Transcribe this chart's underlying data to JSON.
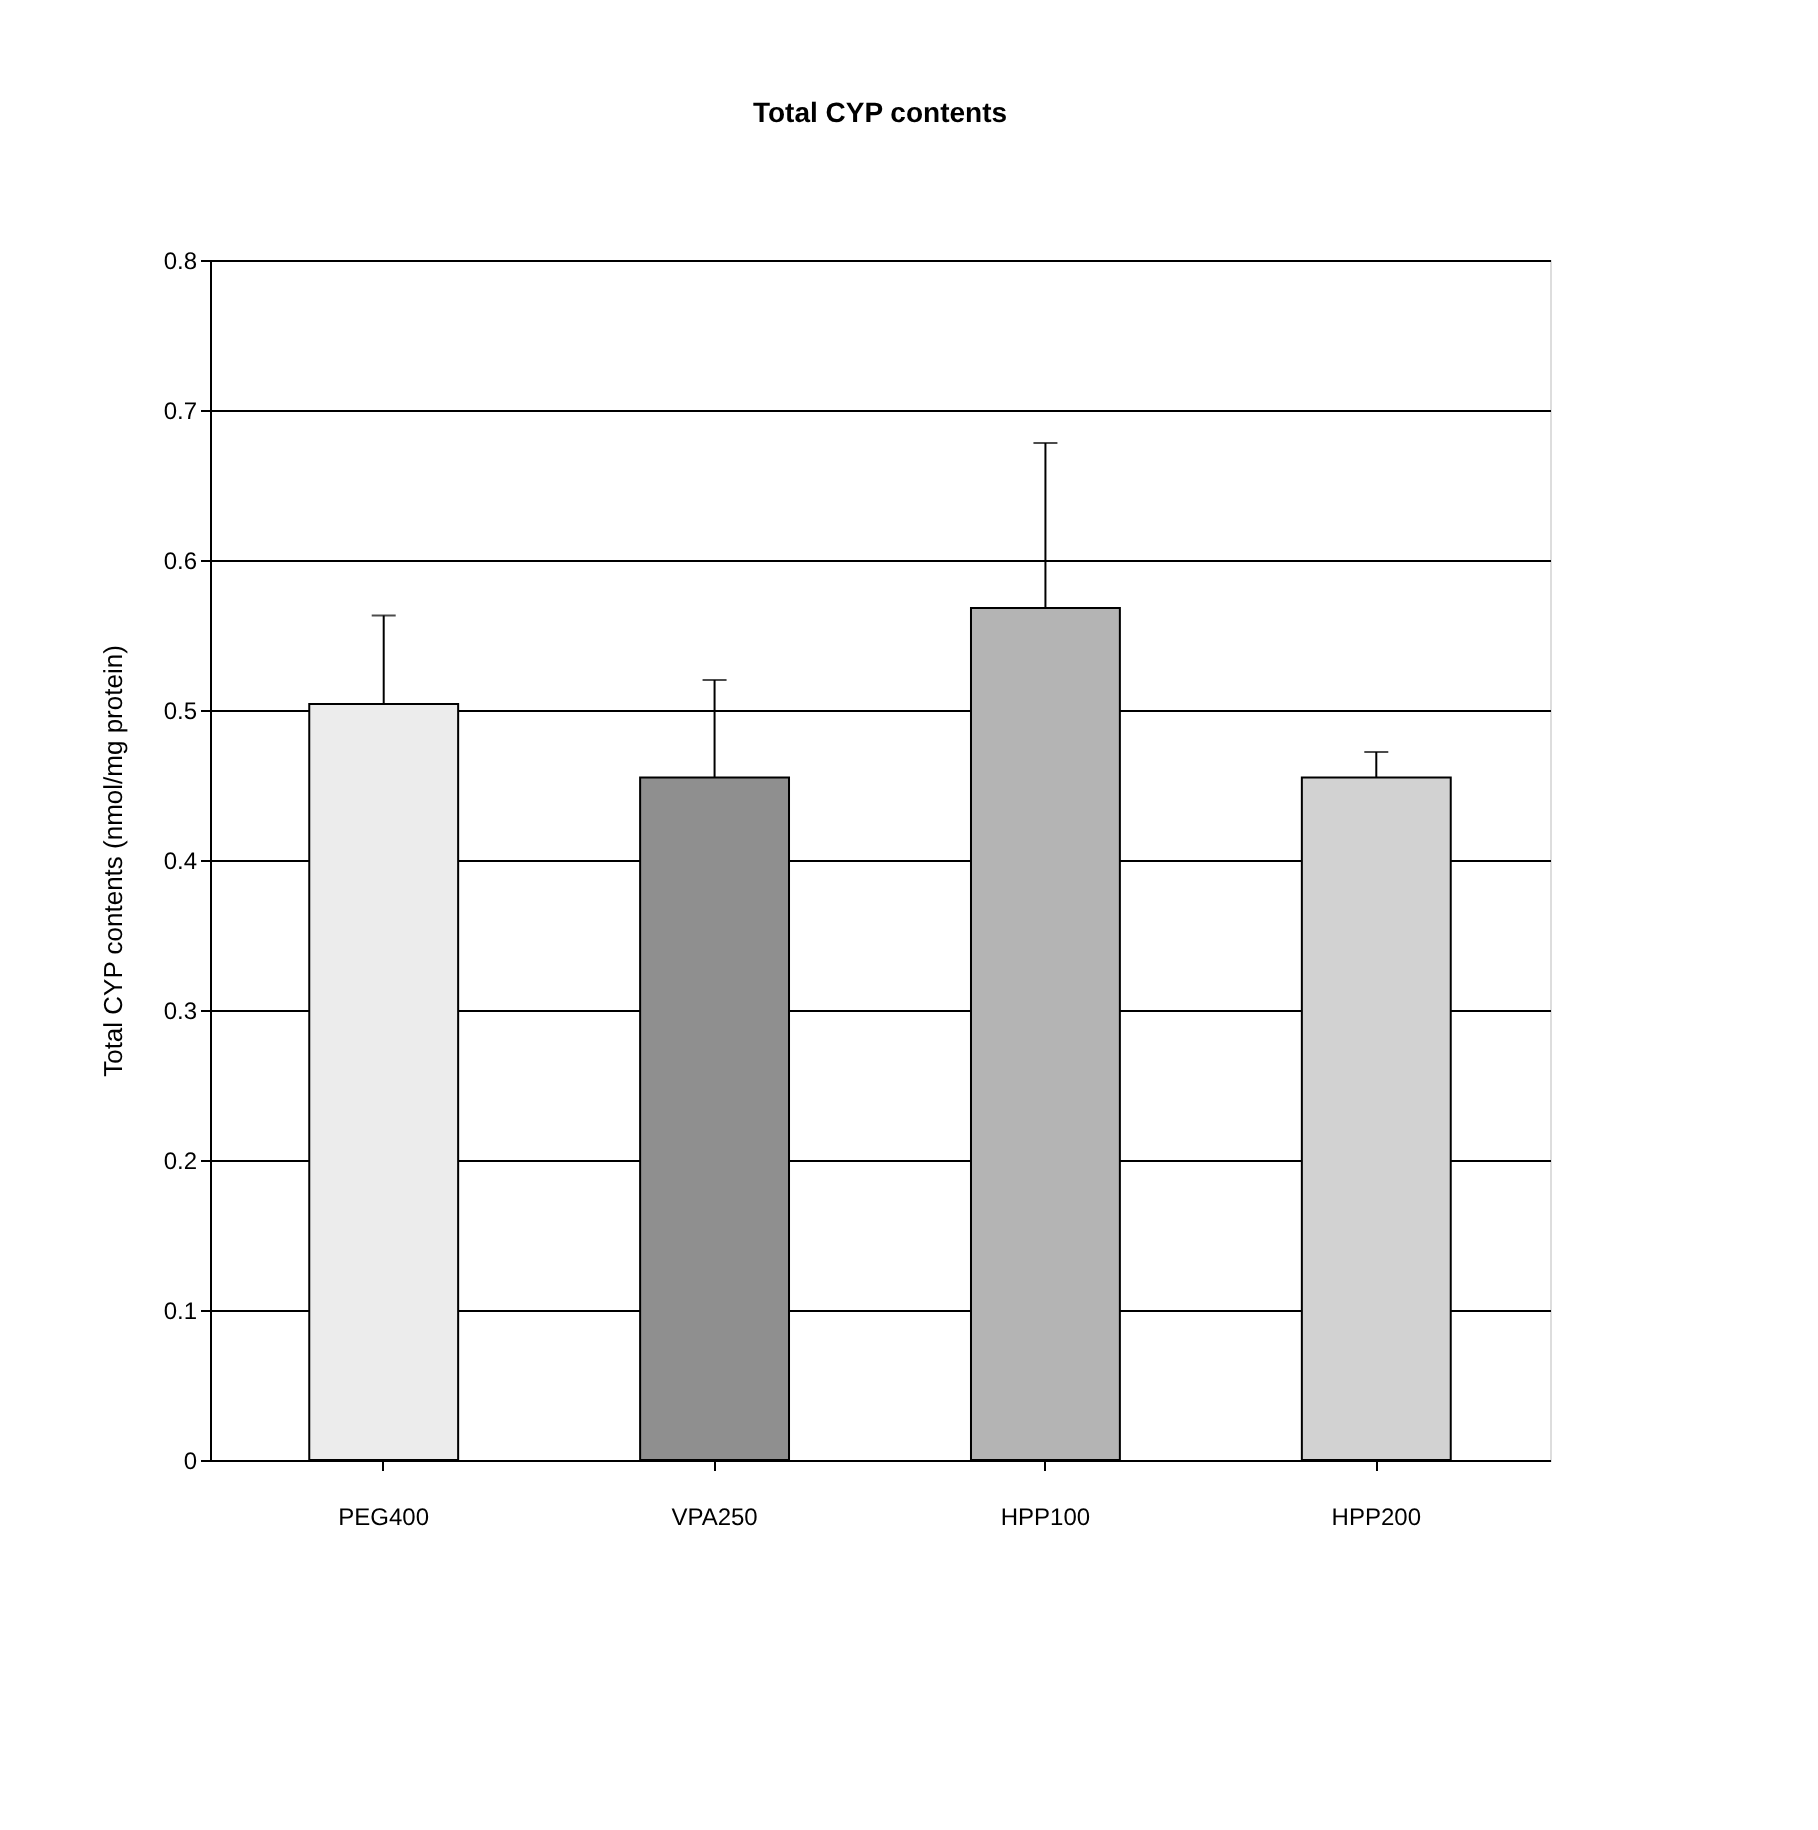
{
  "chart_data": {
    "type": "bar",
    "title": "Total CYP contents",
    "ylabel": "Total CYP contents (nmol/mg protein)",
    "categories": [
      "PEG400",
      "VPA250",
      "HPP100",
      "HPP200"
    ],
    "values": [
      0.504,
      0.455,
      0.568,
      0.455
    ],
    "colors": [
      "#ececec",
      "#8f8f8f",
      "#b4b4b4",
      "#d2d2d2"
    ],
    "errors": [
      [
        0.504,
        0.563
      ],
      [
        0.455,
        0.52
      ],
      [
        0.568,
        0.678
      ],
      [
        0.455,
        0.472
      ]
    ],
    "ylim": [
      0,
      0.8
    ],
    "yticks": [
      0,
      0.1,
      0.2,
      0.3,
      0.4,
      0.5,
      0.6,
      0.7,
      0.8
    ],
    "grid": "y",
    "legend": false
  }
}
